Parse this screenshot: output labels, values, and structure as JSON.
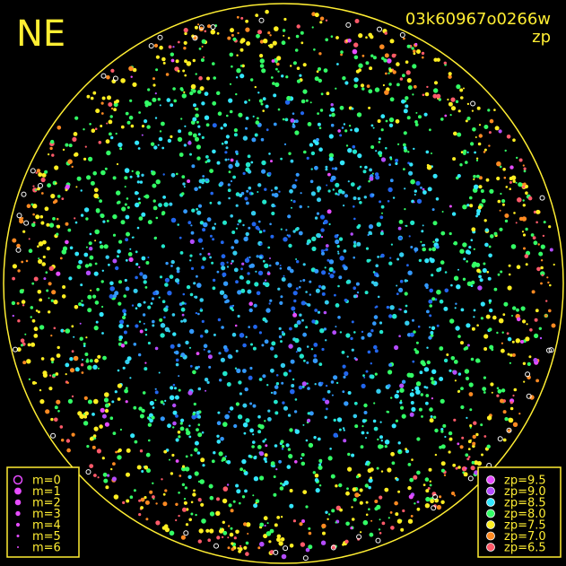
{
  "corner_label": "NE",
  "image_id": "03k60967o0266w",
  "metric": "zp",
  "magnitude_legend": [
    "m=0",
    "m=1",
    "m=2",
    "m=3",
    "m=4",
    "m=5",
    "m=6"
  ],
  "zp_legend": [
    {
      "label": "zp=9.5",
      "color": "#e64cff"
    },
    {
      "label": "zp=9.0",
      "color": "#b44cff"
    },
    {
      "label": "zp=8.5",
      "color": "#33e6ff"
    },
    {
      "label": "zp=8.0",
      "color": "#33ff66"
    },
    {
      "label": "zp=7.5",
      "color": "#ffee22"
    },
    {
      "label": "zp=7.0",
      "color": "#ff8a22"
    },
    {
      "label": "zp=6.5",
      "color": "#ff5a6a"
    }
  ]
}
